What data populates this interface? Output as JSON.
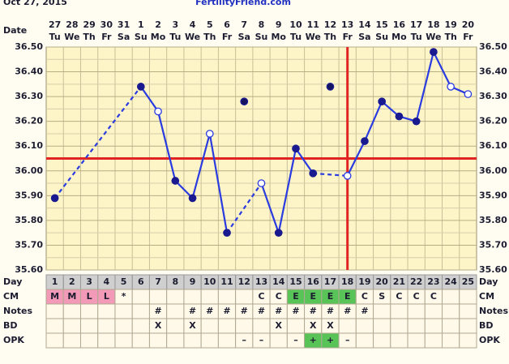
{
  "header": {
    "date": "Oct 27, 2015",
    "site": "FertilityFriend.com"
  },
  "chart_data": {
    "type": "line",
    "date_label": "Date",
    "dates": [
      "27",
      "28",
      "29",
      "30",
      "31",
      "1",
      "2",
      "3",
      "4",
      "5",
      "6",
      "7",
      "8",
      "9",
      "10",
      "11",
      "12",
      "13",
      "14",
      "15",
      "16",
      "17",
      "18",
      "19",
      "20"
    ],
    "weekdays": [
      "Tu",
      "We",
      "Th",
      "Fr",
      "Sa",
      "Su",
      "Mo",
      "Tu",
      "We",
      "Th",
      "Fr",
      "Sa",
      "Su",
      "Mo",
      "Tu",
      "We",
      "Th",
      "Fr",
      "Sa",
      "Su",
      "Mo",
      "Tu",
      "We",
      "Th",
      "Fr"
    ],
    "day_label": "Day",
    "days": [
      1,
      2,
      3,
      4,
      5,
      6,
      7,
      8,
      9,
      10,
      11,
      12,
      13,
      14,
      15,
      16,
      17,
      18,
      19,
      20,
      21,
      22,
      23,
      24,
      25
    ],
    "series": [
      {
        "color": "#2a3be0",
        "connected": true,
        "values": [
          35.89,
          null,
          null,
          null,
          null,
          36.34,
          36.24,
          35.96,
          35.89,
          36.15,
          35.75,
          null,
          35.95,
          35.75,
          36.09,
          35.99,
          null,
          35.98,
          36.12,
          36.28,
          36.22,
          36.2,
          36.48,
          36.34,
          36.31
        ],
        "hollow": [
          false,
          null,
          null,
          null,
          null,
          false,
          true,
          false,
          false,
          true,
          false,
          null,
          true,
          false,
          false,
          false,
          null,
          true,
          false,
          false,
          false,
          false,
          false,
          true,
          true
        ]
      },
      {
        "color": "#141460",
        "connected": false,
        "values": [
          null,
          null,
          null,
          null,
          null,
          null,
          null,
          null,
          null,
          null,
          null,
          36.28,
          null,
          null,
          null,
          null,
          36.34,
          null,
          null,
          null,
          null,
          null,
          null,
          null,
          null
        ]
      }
    ],
    "coverline": {
      "value": 36.05,
      "color": "#e02424"
    },
    "ovulation_day": {
      "value": 18,
      "color": "#e02424"
    },
    "ylim": [
      35.6,
      36.5
    ],
    "yticks": [
      {
        "value": 35.6,
        "label": "35.60"
      },
      {
        "value": 35.7,
        "label": "35.70"
      },
      {
        "value": 35.8,
        "label": "35.80"
      },
      {
        "value": 35.9,
        "label": "35.90"
      },
      {
        "value": 36.0,
        "label": "36.00"
      },
      {
        "value": 36.1,
        "label": "36.10"
      },
      {
        "value": 36.2,
        "label": "36.20"
      },
      {
        "value": 36.3,
        "label": "36.30"
      },
      {
        "value": 36.4,
        "label": "36.40"
      },
      {
        "value": 36.5,
        "label": "36.50"
      }
    ],
    "grid": true,
    "minor_grid": true
  },
  "table": {
    "cell_colors": {
      "M": "#f29ab8",
      "L": "#f29ab8",
      "E": "#58c458",
      "+": "#58c458"
    },
    "rows": [
      {
        "label": "CM",
        "cells": [
          "M",
          "M",
          "L",
          "L",
          "*",
          null,
          null,
          null,
          null,
          null,
          null,
          null,
          "C",
          "C",
          "E",
          "E",
          "E",
          "E",
          "C",
          "S",
          "C",
          "C",
          "C",
          null,
          null
        ]
      },
      {
        "label": "Notes",
        "cells": [
          null,
          null,
          null,
          null,
          null,
          null,
          "#",
          null,
          "#",
          "#",
          "#",
          "#",
          "#",
          "#",
          "#",
          "#",
          "#",
          "#",
          "#",
          null,
          null,
          null,
          null,
          null,
          null
        ]
      },
      {
        "label": "BD",
        "cells": [
          null,
          null,
          null,
          null,
          null,
          null,
          "X",
          null,
          "X",
          null,
          null,
          null,
          null,
          "X",
          null,
          "X",
          "X",
          null,
          null,
          null,
          null,
          null,
          null,
          null,
          null
        ]
      },
      {
        "label": "OPK",
        "cells": [
          null,
          null,
          null,
          null,
          null,
          null,
          null,
          null,
          null,
          null,
          null,
          "–",
          "–",
          null,
          "–",
          "+",
          "+",
          "–",
          null,
          null,
          null,
          null,
          null,
          null,
          null
        ]
      }
    ]
  }
}
